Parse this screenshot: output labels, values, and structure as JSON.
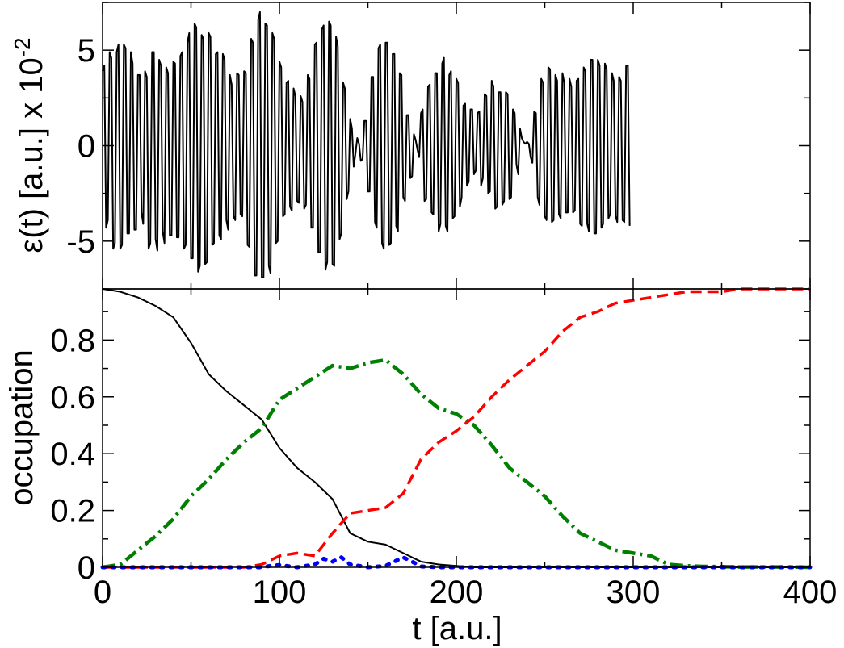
{
  "chart_data": [
    {
      "panel": "top",
      "type": "line",
      "ylabel": "ε(t) [a.u.] x 10",
      "ylabel_exponent": "-2",
      "xlim": [
        0,
        400
      ],
      "ylim": [
        -7.5,
        7.5
      ],
      "yticks": [
        -5,
        0,
        5
      ],
      "ytick_labels": [
        "-5",
        "0",
        "5"
      ],
      "grid": false,
      "series": [
        {
          "color": "#000000",
          "style": "solid",
          "samples": {
            "x_start": 0,
            "x_step": 1
          },
          "values": [
            3.9,
            4.2,
            -4.3,
            -3.9,
            4.9,
            4.6,
            -5.4,
            -5.1,
            4.9,
            5.3,
            -5.4,
            -5.2,
            5.3,
            5.1,
            -4.6,
            -4.6,
            4.9,
            4.3,
            -4.4,
            -4.4,
            3.7,
            3.7,
            -3.5,
            -4.1,
            3.9,
            3.6,
            -5.4,
            -5.1,
            4.9,
            4.9,
            -4.9,
            -5.5,
            4.5,
            4.2,
            -4.5,
            -5.1,
            4.1,
            3.8,
            -4.7,
            -4.7,
            4.4,
            4.3,
            -4.8,
            -4.8,
            4.7,
            4.9,
            -5.4,
            -5.2,
            5.4,
            5.9,
            -5.9,
            -5.9,
            6.4,
            6.2,
            -6.6,
            -6.3,
            5.8,
            5.6,
            -6.2,
            -6.1,
            5.9,
            5.7,
            -5.2,
            -5.1,
            4.8,
            4.9,
            -4.7,
            -4.9,
            4.8,
            4.5,
            -3.9,
            -4.4,
            3.7,
            3.2,
            -3.7,
            -3.9,
            3.8,
            3.7,
            -3.6,
            -3.7,
            3.9,
            3.8,
            -5.2,
            -5.3,
            5.6,
            5.4,
            -6.8,
            -6.8,
            6.6,
            7.0,
            -6.9,
            -6.9,
            6.4,
            6.3,
            -6.3,
            -6.7,
            5.9,
            5.6,
            -5.1,
            -5.0,
            4.4,
            4.1,
            -3.7,
            -3.6,
            3.3,
            3.4,
            -3.2,
            -3.4,
            3.0,
            2.6,
            -2.9,
            -3.0,
            2.6,
            2.3,
            -3.3,
            -3.1,
            3.7,
            3.5,
            -4.3,
            -4.3,
            5.3,
            5.4,
            -5.6,
            -5.6,
            6.1,
            6.3,
            -6.5,
            -6.1,
            6.5,
            6.3,
            -6.2,
            -6.3,
            5.7,
            5.2,
            -4.9,
            -4.6,
            3.3,
            3.0,
            -2.8,
            -2.4,
            1.4,
            0.9,
            -1.1,
            -0.4,
            0.4,
            0.1,
            -0.8,
            -0.7,
            1.3,
            1.3,
            -2.4,
            -2.4,
            3.6,
            3.6,
            -4.0,
            -4.3,
            5.1,
            5.3,
            -5.1,
            -5.4,
            5.4,
            5.4,
            -5.2,
            -5.1,
            4.8,
            4.8,
            -4.2,
            -4.5,
            3.8,
            3.7,
            -2.7,
            -2.9,
            1.6,
            1.6,
            -1.7,
            -1.6,
            0.6,
            0.3,
            -0.2,
            -0.6,
            1.7,
            1.9,
            -2.9,
            -2.8,
            3.1,
            3.2,
            -3.5,
            -3.6,
            3.8,
            3.8,
            -4.5,
            -4.1,
            4.3,
            4.6,
            -4.2,
            -4.5,
            3.7,
            3.9,
            -3.8,
            -3.7,
            3.5,
            3.3,
            -3.2,
            -2.7,
            2.1,
            2.2,
            -2.1,
            -1.9,
            1.9,
            1.9,
            -1.5,
            -1.3,
            1.7,
            1.8,
            -2.1,
            -1.7,
            2.7,
            2.6,
            -2.5,
            -2.4,
            3.4,
            3.1,
            -3.3,
            -3.2,
            2.8,
            2.8,
            -3.1,
            -2.9,
            2.8,
            2.7,
            -2.8,
            -2.7,
            1.9,
            1.7,
            -1.0,
            -1.5,
            0.9,
            0.4,
            0.2,
            0.1,
            0.2,
            0.1,
            -0.6,
            -0.9,
            1.8,
            1.7,
            -2.7,
            -3.1,
            3.5,
            3.3,
            -3.7,
            -3.9,
            4.1,
            4.0,
            -4.0,
            -3.9,
            3.7,
            3.4,
            -3.6,
            -3.8,
            3.8,
            3.3,
            -3.5,
            -3.5,
            3.5,
            3.1,
            -3.5,
            -3.4,
            3.4,
            3.5,
            -4.1,
            -4.2,
            4.1,
            3.9,
            -4.1,
            -4.5,
            4.5,
            4.5,
            -4.6,
            -4.6,
            4.5,
            4.2,
            -4.3,
            -4.1,
            4.3,
            4.0,
            -3.8,
            -3.6,
            3.8,
            3.4,
            -3.7,
            -4.0,
            3.6,
            3.4,
            -3.9,
            -4.0,
            4.2,
            4.2,
            -4.2
          ]
        }
      ]
    },
    {
      "panel": "bottom",
      "type": "line",
      "xlabel": "t [a.u.]",
      "ylabel": "occupation",
      "xlim": [
        0,
        400
      ],
      "ylim": [
        0,
        0.98
      ],
      "xticks": [
        0,
        100,
        200,
        300,
        400
      ],
      "xtick_labels": [
        "0",
        "100",
        "200",
        "300",
        "400"
      ],
      "yticks": [
        0,
        0.2,
        0.4,
        0.6,
        0.8
      ],
      "ytick_labels": [
        "0",
        "0.2",
        "0.4",
        "0.6",
        "0.8"
      ],
      "grid": false,
      "series": [
        {
          "color": "#000000",
          "style": "solid",
          "x": [
            0,
            10,
            20,
            30,
            40,
            50,
            60,
            70,
            80,
            90,
            100,
            110,
            120,
            130,
            140,
            150,
            160,
            170,
            180,
            190,
            200,
            210,
            250,
            300,
            350,
            400
          ],
          "y": [
            0.98,
            0.97,
            0.95,
            0.92,
            0.88,
            0.79,
            0.68,
            0.62,
            0.57,
            0.52,
            0.42,
            0.35,
            0.3,
            0.24,
            0.12,
            0.09,
            0.08,
            0.05,
            0.02,
            0.01,
            0.005,
            0,
            0,
            0,
            0,
            0
          ]
        },
        {
          "color": "#008000",
          "style": "dashdot",
          "x": [
            0,
            10,
            20,
            30,
            40,
            50,
            60,
            70,
            80,
            90,
            100,
            110,
            120,
            130,
            140,
            150,
            160,
            170,
            180,
            190,
            200,
            210,
            220,
            230,
            240,
            250,
            260,
            270,
            280,
            290,
            300,
            310,
            320,
            330,
            340,
            350,
            360,
            370,
            380,
            390,
            400
          ],
          "y": [
            0,
            0.01,
            0.06,
            0.11,
            0.17,
            0.25,
            0.31,
            0.38,
            0.44,
            0.49,
            0.59,
            0.63,
            0.67,
            0.71,
            0.7,
            0.72,
            0.73,
            0.68,
            0.61,
            0.56,
            0.54,
            0.5,
            0.43,
            0.35,
            0.3,
            0.25,
            0.18,
            0.12,
            0.09,
            0.06,
            0.05,
            0.04,
            0.01,
            0.005,
            0.003,
            0.002,
            0.001,
            0.001,
            0.001,
            0.001,
            0
          ]
        },
        {
          "color": "#ff0000",
          "style": "dashed",
          "x": [
            0,
            40,
            80,
            90,
            100,
            110,
            120,
            130,
            140,
            150,
            160,
            170,
            180,
            190,
            200,
            210,
            220,
            230,
            240,
            250,
            260,
            270,
            280,
            290,
            300,
            310,
            320,
            330,
            340,
            350,
            360,
            370,
            380,
            390,
            400
          ],
          "y": [
            0,
            0,
            0,
            0.01,
            0.04,
            0.05,
            0.04,
            0.12,
            0.19,
            0.2,
            0.21,
            0.26,
            0.38,
            0.44,
            0.48,
            0.53,
            0.6,
            0.66,
            0.71,
            0.76,
            0.83,
            0.88,
            0.9,
            0.93,
            0.94,
            0.95,
            0.96,
            0.97,
            0.97,
            0.97,
            0.98,
            0.98,
            0.98,
            0.98,
            0.98
          ]
        },
        {
          "color": "#0000ff",
          "style": "dotted",
          "x": [
            0,
            90,
            95,
            100,
            105,
            110,
            120,
            125,
            130,
            135,
            140,
            150,
            160,
            165,
            170,
            175,
            180,
            190,
            200,
            300,
            400
          ],
          "y": [
            0,
            0,
            0.005,
            0.008,
            0.004,
            0,
            0.01,
            0.03,
            0.02,
            0.035,
            0.01,
            0,
            0.005,
            0.02,
            0.035,
            0.02,
            0.003,
            0,
            0,
            0,
            0
          ]
        }
      ]
    }
  ]
}
